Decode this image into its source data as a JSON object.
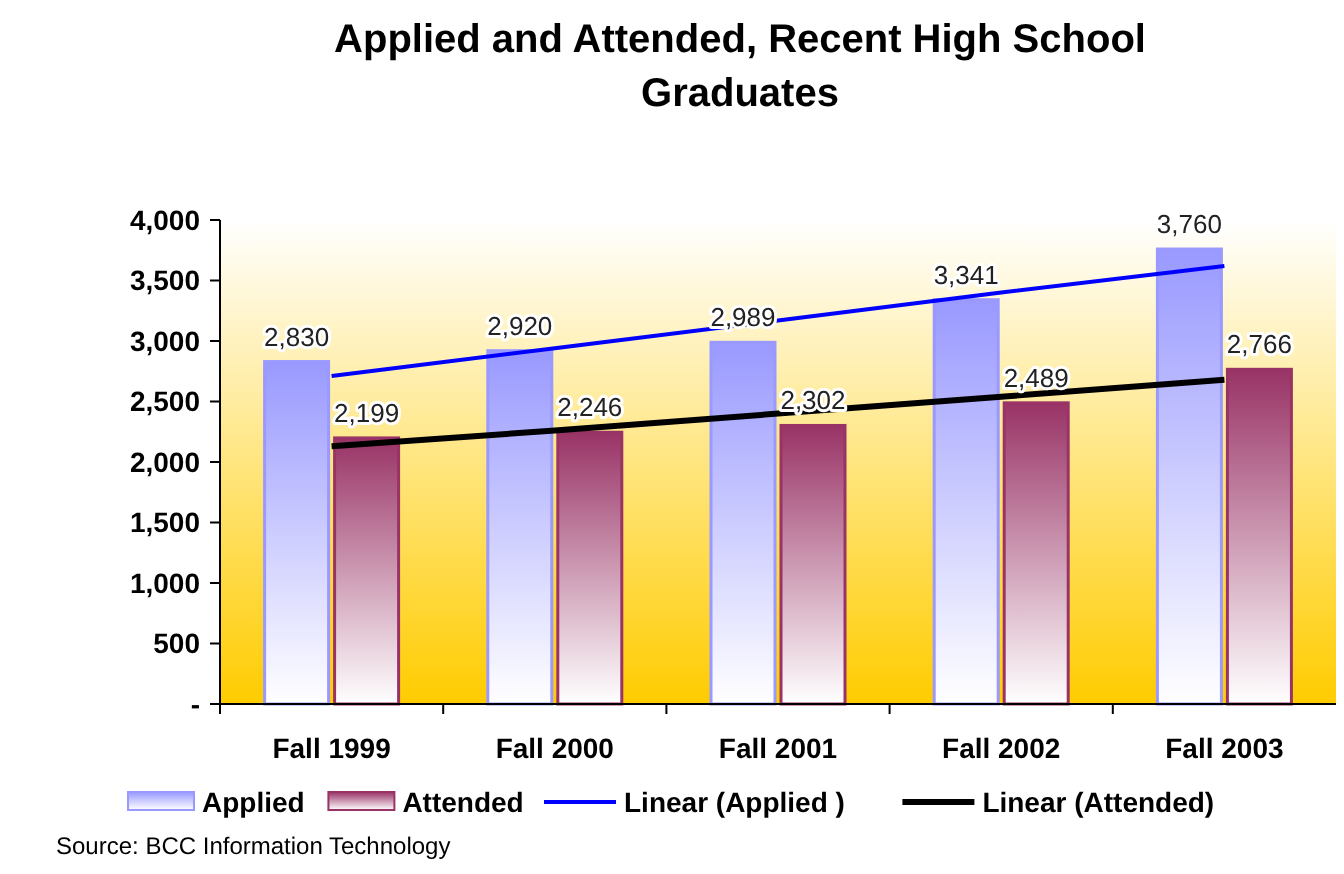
{
  "chart_data": {
    "type": "bar",
    "title": "Applied and Attended, Recent High School Graduates",
    "categories": [
      "Fall 1999",
      "Fall 2000",
      "Fall 2001",
      "Fall 2002",
      "Fall 2003"
    ],
    "series": [
      {
        "name": "Applied",
        "color": "#9999ff",
        "values": [
          2830,
          2920,
          2989,
          3341,
          3760
        ]
      },
      {
        "name": "Attended",
        "color": "#993366",
        "values": [
          2199,
          2246,
          2302,
          2489,
          2766
        ]
      },
      {
        "name": "Linear (Applied )",
        "type": "line",
        "color": "#0000ff",
        "values": [
          2710,
          2940,
          3170,
          3400,
          3620
        ]
      },
      {
        "name": "Linear (Attended)",
        "type": "line",
        "color": "#000000",
        "values": [
          2130,
          2260,
          2400,
          2540,
          2680
        ]
      }
    ],
    "value_labels": [
      [
        "2,830",
        "2,920",
        "2,989",
        "3,341",
        "3,760"
      ],
      [
        "2,199",
        "2,246",
        "2,302",
        "2,489",
        "2,766"
      ],
      null,
      null
    ],
    "ylim": [
      0,
      4000
    ],
    "yticks": [
      {
        "value": 0,
        "label": "-"
      },
      {
        "value": 500,
        "label": "500"
      },
      {
        "value": 1000,
        "label": "1,000"
      },
      {
        "value": 1500,
        "label": "1,500"
      },
      {
        "value": 2000,
        "label": "2,000"
      },
      {
        "value": 2500,
        "label": "2,500"
      },
      {
        "value": 3000,
        "label": "3,000"
      },
      {
        "value": 3500,
        "label": "3,500"
      },
      {
        "value": 4000,
        "label": "4,000"
      }
    ],
    "grid": false,
    "legend": "bottom",
    "annotations": [
      "Source:  BCC Information Technology"
    ]
  }
}
